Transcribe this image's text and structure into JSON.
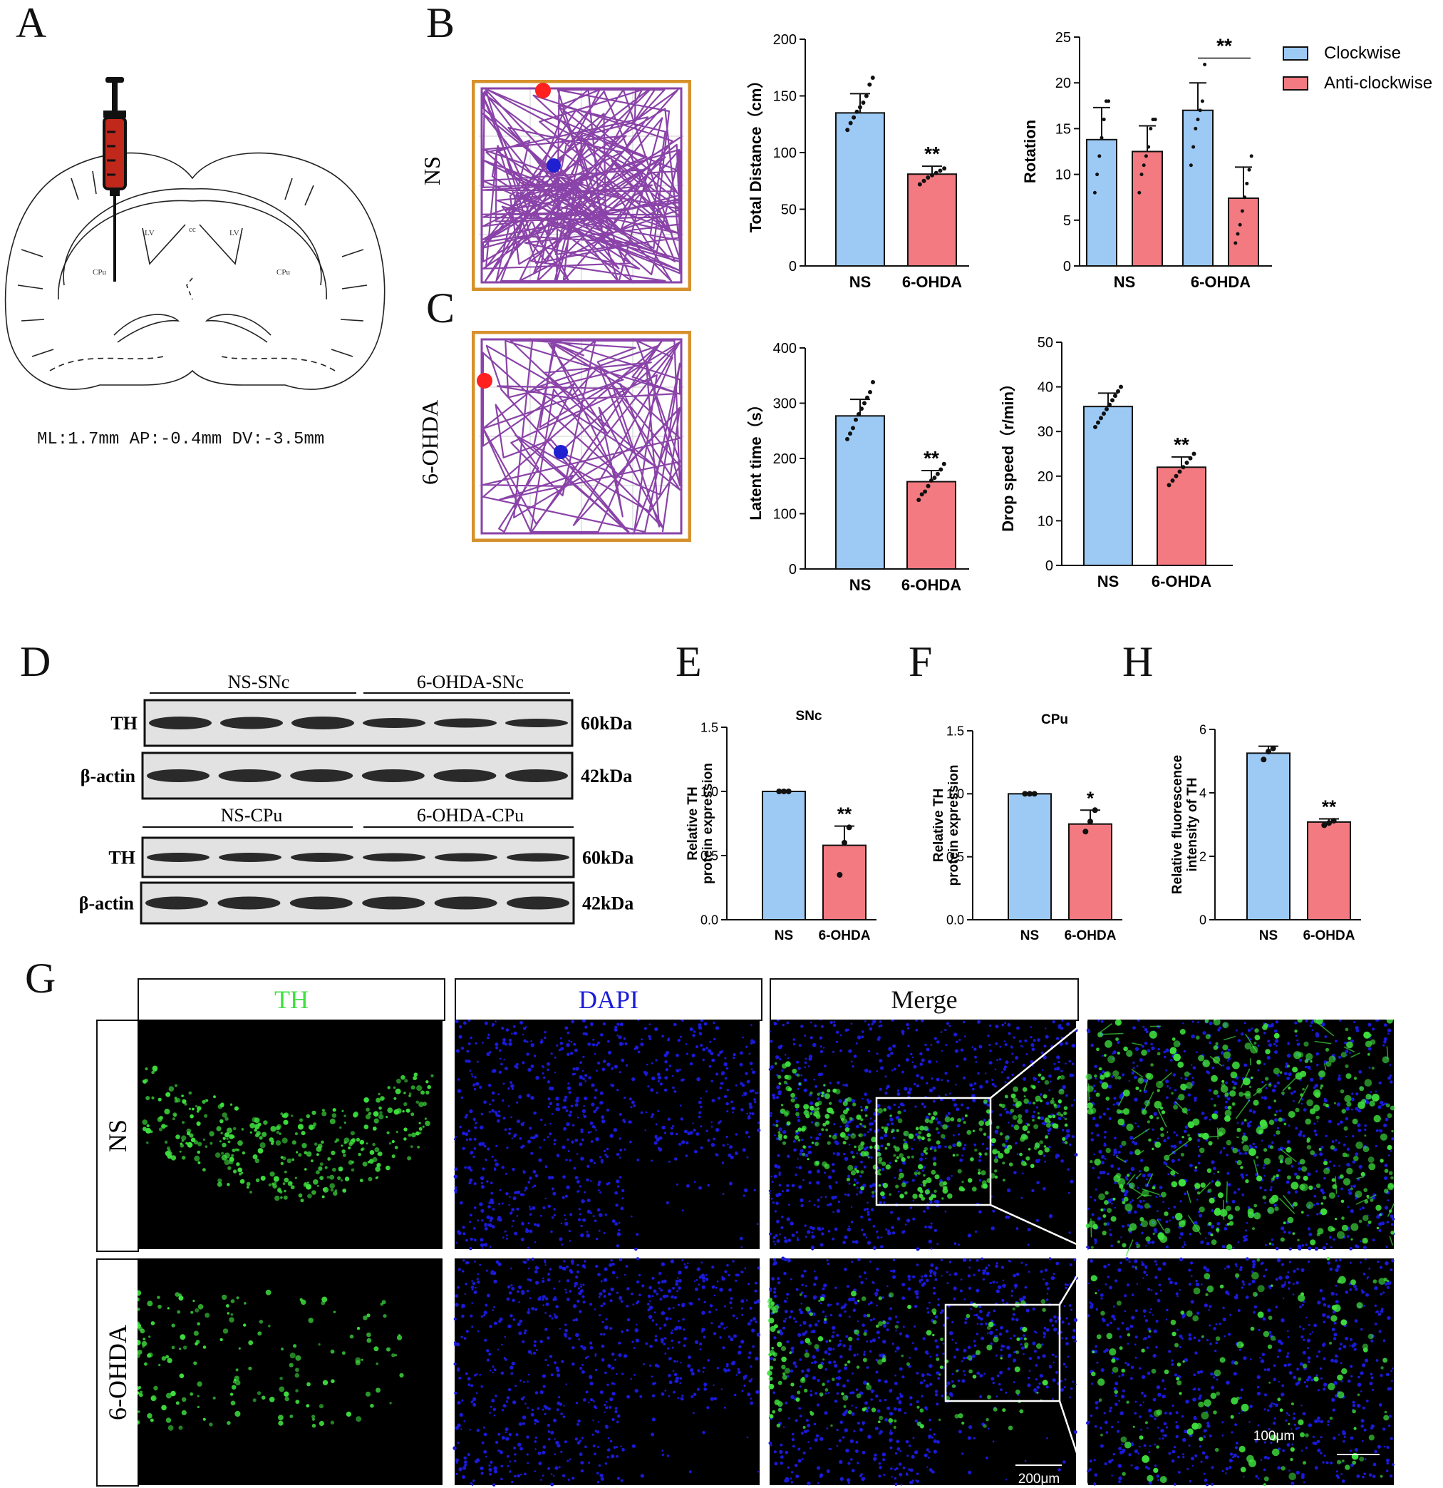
{
  "panels": {
    "A": "A",
    "B": "B",
    "C": "C",
    "D": "D",
    "E": "E",
    "F": "F",
    "H": "H",
    "G": "G"
  },
  "colors": {
    "ns_blue": "#9ccaf5",
    "ohda_red": "#f27a80",
    "track_purple": "#8a43a8",
    "arena_orange": "#d6912c",
    "fluor_green": "#3ee03e",
    "fluor_blue": "#1a1ad8"
  },
  "panel_a": {
    "coords": "ML:1.7mm AP:-0.4mm DV:-3.5mm",
    "labels": {
      "lv_left": "LV",
      "lv_right": "LV",
      "cc": "cc",
      "cpu_left": "CPu",
      "cpu_right": "CPu"
    }
  },
  "track_rows": {
    "ns": "NS",
    "ohda": "6-OHDA"
  },
  "legend": {
    "clockwise": "Clockwise",
    "anticlockwise": "Anti-clockwise"
  },
  "sig": {
    "double": "**",
    "single": "*"
  },
  "western": {
    "groups_top": [
      "NS-SNc",
      "6-OHDA-SNc"
    ],
    "groups_bottom": [
      "NS-CPu",
      "6-OHDA-CPu"
    ],
    "row_labels": [
      "TH",
      "β-actin",
      "TH",
      "β-actin"
    ],
    "sizes": [
      "60kDa",
      "42kDa",
      "60kDa",
      "42kDa"
    ]
  },
  "if_panel": {
    "channels": [
      "TH",
      "DAPI",
      "Merge"
    ],
    "rows": [
      "NS",
      "6-OHDA"
    ],
    "scale_small": "200μm",
    "scale_zoom": "100μm"
  },
  "chart_data": [
    {
      "id": "total_distance",
      "type": "bar",
      "categories": [
        "NS",
        "6-OHDA"
      ],
      "values": [
        135,
        81
      ],
      "errors": [
        17,
        7
      ],
      "ylabel": "Total Distance（cm）",
      "ylim": [
        0,
        200
      ],
      "yticks": [
        0,
        50,
        100,
        150,
        200
      ],
      "significance": [
        "",
        "**"
      ],
      "points": [
        [
          120,
          126,
          131,
          136,
          140,
          144,
          150,
          160,
          166
        ],
        [
          72,
          75,
          78,
          80,
          82,
          84,
          86
        ]
      ]
    },
    {
      "id": "rotation",
      "type": "bar",
      "categories": [
        "NS",
        "6-OHDA"
      ],
      "series": [
        {
          "name": "Clockwise",
          "values": [
            13.8,
            17
          ],
          "errors": [
            3.5,
            3
          ]
        },
        {
          "name": "Anti-clockwise",
          "values": [
            12.5,
            7.4
          ],
          "errors": [
            2.8,
            3.4
          ]
        }
      ],
      "ylabel": "Rotation",
      "ylim": [
        0,
        25
      ],
      "yticks": [
        0,
        5,
        10,
        15,
        20,
        25
      ],
      "significance_bracket": "**",
      "points": [
        [
          [
            8,
            10,
            12,
            14,
            16,
            18,
            18
          ],
          [
            8,
            10,
            11,
            12,
            13,
            15,
            16,
            16
          ]
        ],
        [
          [
            11,
            13,
            15,
            16,
            17,
            18,
            22
          ],
          [
            2.5,
            3.5,
            4.5,
            6,
            7.5,
            9,
            10.5,
            12
          ]
        ]
      ]
    },
    {
      "id": "latent_time",
      "type": "bar",
      "categories": [
        "NS",
        "6-OHDA"
      ],
      "values": [
        277,
        158
      ],
      "errors": [
        30,
        20
      ],
      "ylabel": "Latent time（s）",
      "ylim": [
        0,
        400
      ],
      "yticks": [
        0,
        100,
        200,
        300,
        400
      ],
      "significance": [
        "",
        "**"
      ],
      "points": [
        [
          235,
          245,
          255,
          270,
          280,
          290,
          300,
          310,
          320,
          338
        ],
        [
          125,
          135,
          140,
          150,
          160,
          165,
          172,
          180,
          190
        ]
      ]
    },
    {
      "id": "drop_speed",
      "type": "bar",
      "categories": [
        "NS",
        "6-OHDA"
      ],
      "values": [
        35.6,
        22
      ],
      "errors": [
        3,
        2.3
      ],
      "ylabel": "Drop speed（r/min）",
      "ylim": [
        0,
        50
      ],
      "yticks": [
        0,
        10,
        20,
        30,
        40,
        50
      ],
      "significance": [
        "",
        "**"
      ],
      "points": [
        [
          31,
          32,
          33,
          34,
          35,
          36,
          37,
          38,
          39,
          40
        ],
        [
          18,
          19,
          20,
          21,
          22,
          23,
          24,
          25
        ]
      ]
    },
    {
      "id": "snc",
      "type": "bar",
      "title": "SNc",
      "categories": [
        "NS",
        "6-OHDA"
      ],
      "values": [
        1.0,
        0.58
      ],
      "errors": [
        0,
        0.15
      ],
      "ylabel": "Relative TH protein expression",
      "ylim": [
        0,
        1.5
      ],
      "yticks": [
        "0.0",
        "0.5",
        "1.0",
        "1.5"
      ],
      "significance": [
        "",
        "**"
      ],
      "points": [
        [
          1,
          1,
          1
        ],
        [
          0.35,
          0.6,
          0.72
        ]
      ]
    },
    {
      "id": "cpu",
      "type": "bar",
      "title": "CPu",
      "categories": [
        "NS",
        "6-OHDA"
      ],
      "values": [
        1.0,
        0.76
      ],
      "errors": [
        0,
        0.11
      ],
      "ylabel": "Relative TH protein expression",
      "ylim": [
        0,
        1.5
      ],
      "yticks": [
        "0.0",
        "0.5",
        "1.0",
        "1.5"
      ],
      "significance": [
        "",
        "*"
      ],
      "points": [
        [
          1,
          1,
          1
        ],
        [
          0.7,
          0.78,
          0.87
        ]
      ]
    },
    {
      "id": "fluorescence",
      "type": "bar",
      "categories": [
        "NS",
        "6-OHDA"
      ],
      "values": [
        5.25,
        3.08
      ],
      "errors": [
        0.22,
        0.1
      ],
      "ylabel": "Relative fluorescence intensity of TH",
      "ylim": [
        0,
        6
      ],
      "yticks": [
        "0",
        "2",
        "4",
        "6"
      ],
      "significance": [
        "",
        "**"
      ],
      "points": [
        [
          5.05,
          5.3,
          5.4
        ],
        [
          2.98,
          3.05,
          3.12
        ]
      ]
    }
  ]
}
